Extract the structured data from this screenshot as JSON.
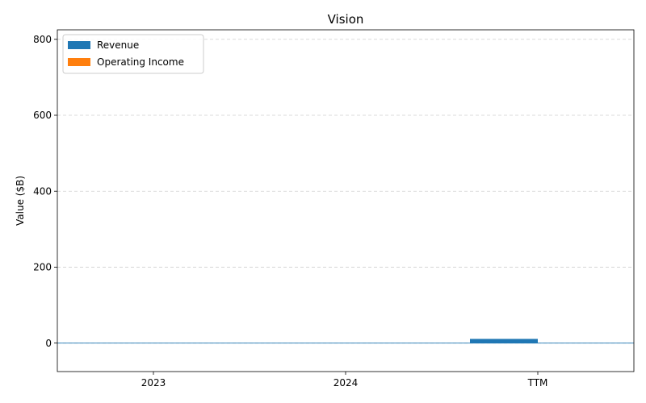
{
  "chart_data": {
    "type": "bar",
    "title": "Vision",
    "xlabel": "",
    "ylabel": "Value ($B)",
    "categories": [
      "2023",
      "2024",
      "TTM"
    ],
    "series": [
      {
        "name": "Revenue",
        "color": "#1f77b4",
        "values": [
          0,
          0,
          11
        ]
      },
      {
        "name": "Operating Income",
        "color": "#ff7f0e",
        "values": [
          0,
          0,
          0
        ]
      }
    ],
    "ylim": [
      -75,
      825
    ],
    "yticks": [
      0,
      200,
      400,
      600,
      800
    ],
    "grid": "y-dashed",
    "legend": "top-left"
  }
}
